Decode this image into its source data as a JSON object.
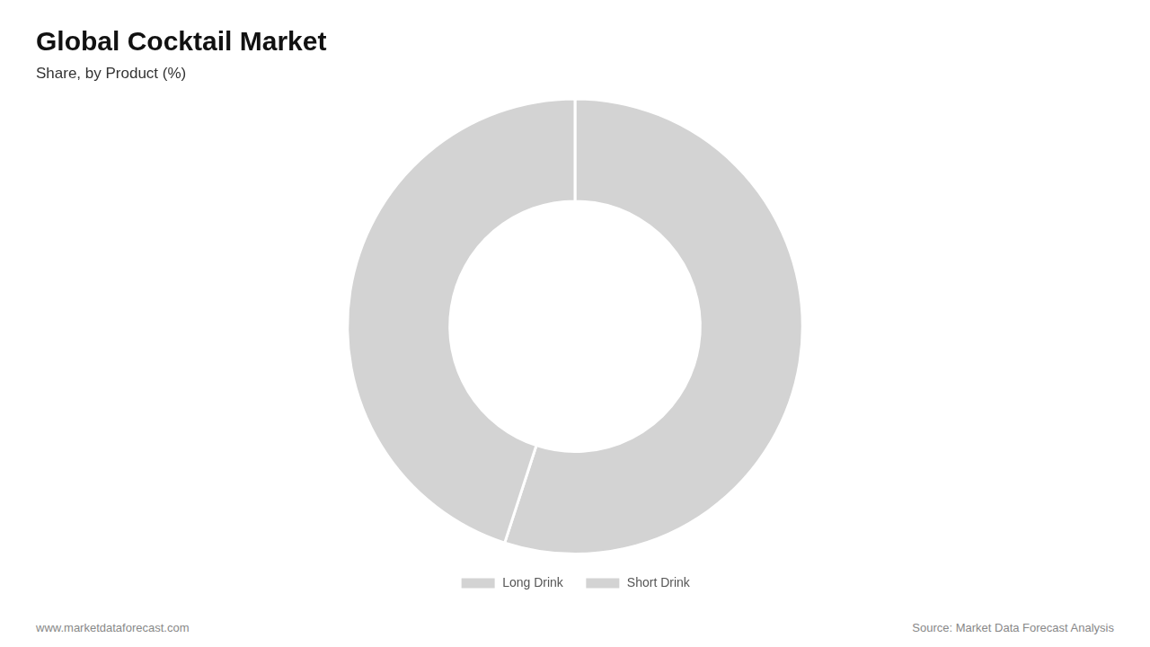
{
  "chart_data": {
    "type": "doughnut",
    "title": "Global Cocktail Market",
    "subtitle": "Share, by Product (%)",
    "categories": [
      "Long Drink",
      "Short Drink"
    ],
    "values": [
      55,
      45
    ],
    "colors": [
      "#d3d3d3",
      "#d3d3d3"
    ],
    "legend": "bottom",
    "annotations": [
      "www.marketdataforecast.com",
      "Source: Market Data Forecast Analysis"
    ]
  }
}
